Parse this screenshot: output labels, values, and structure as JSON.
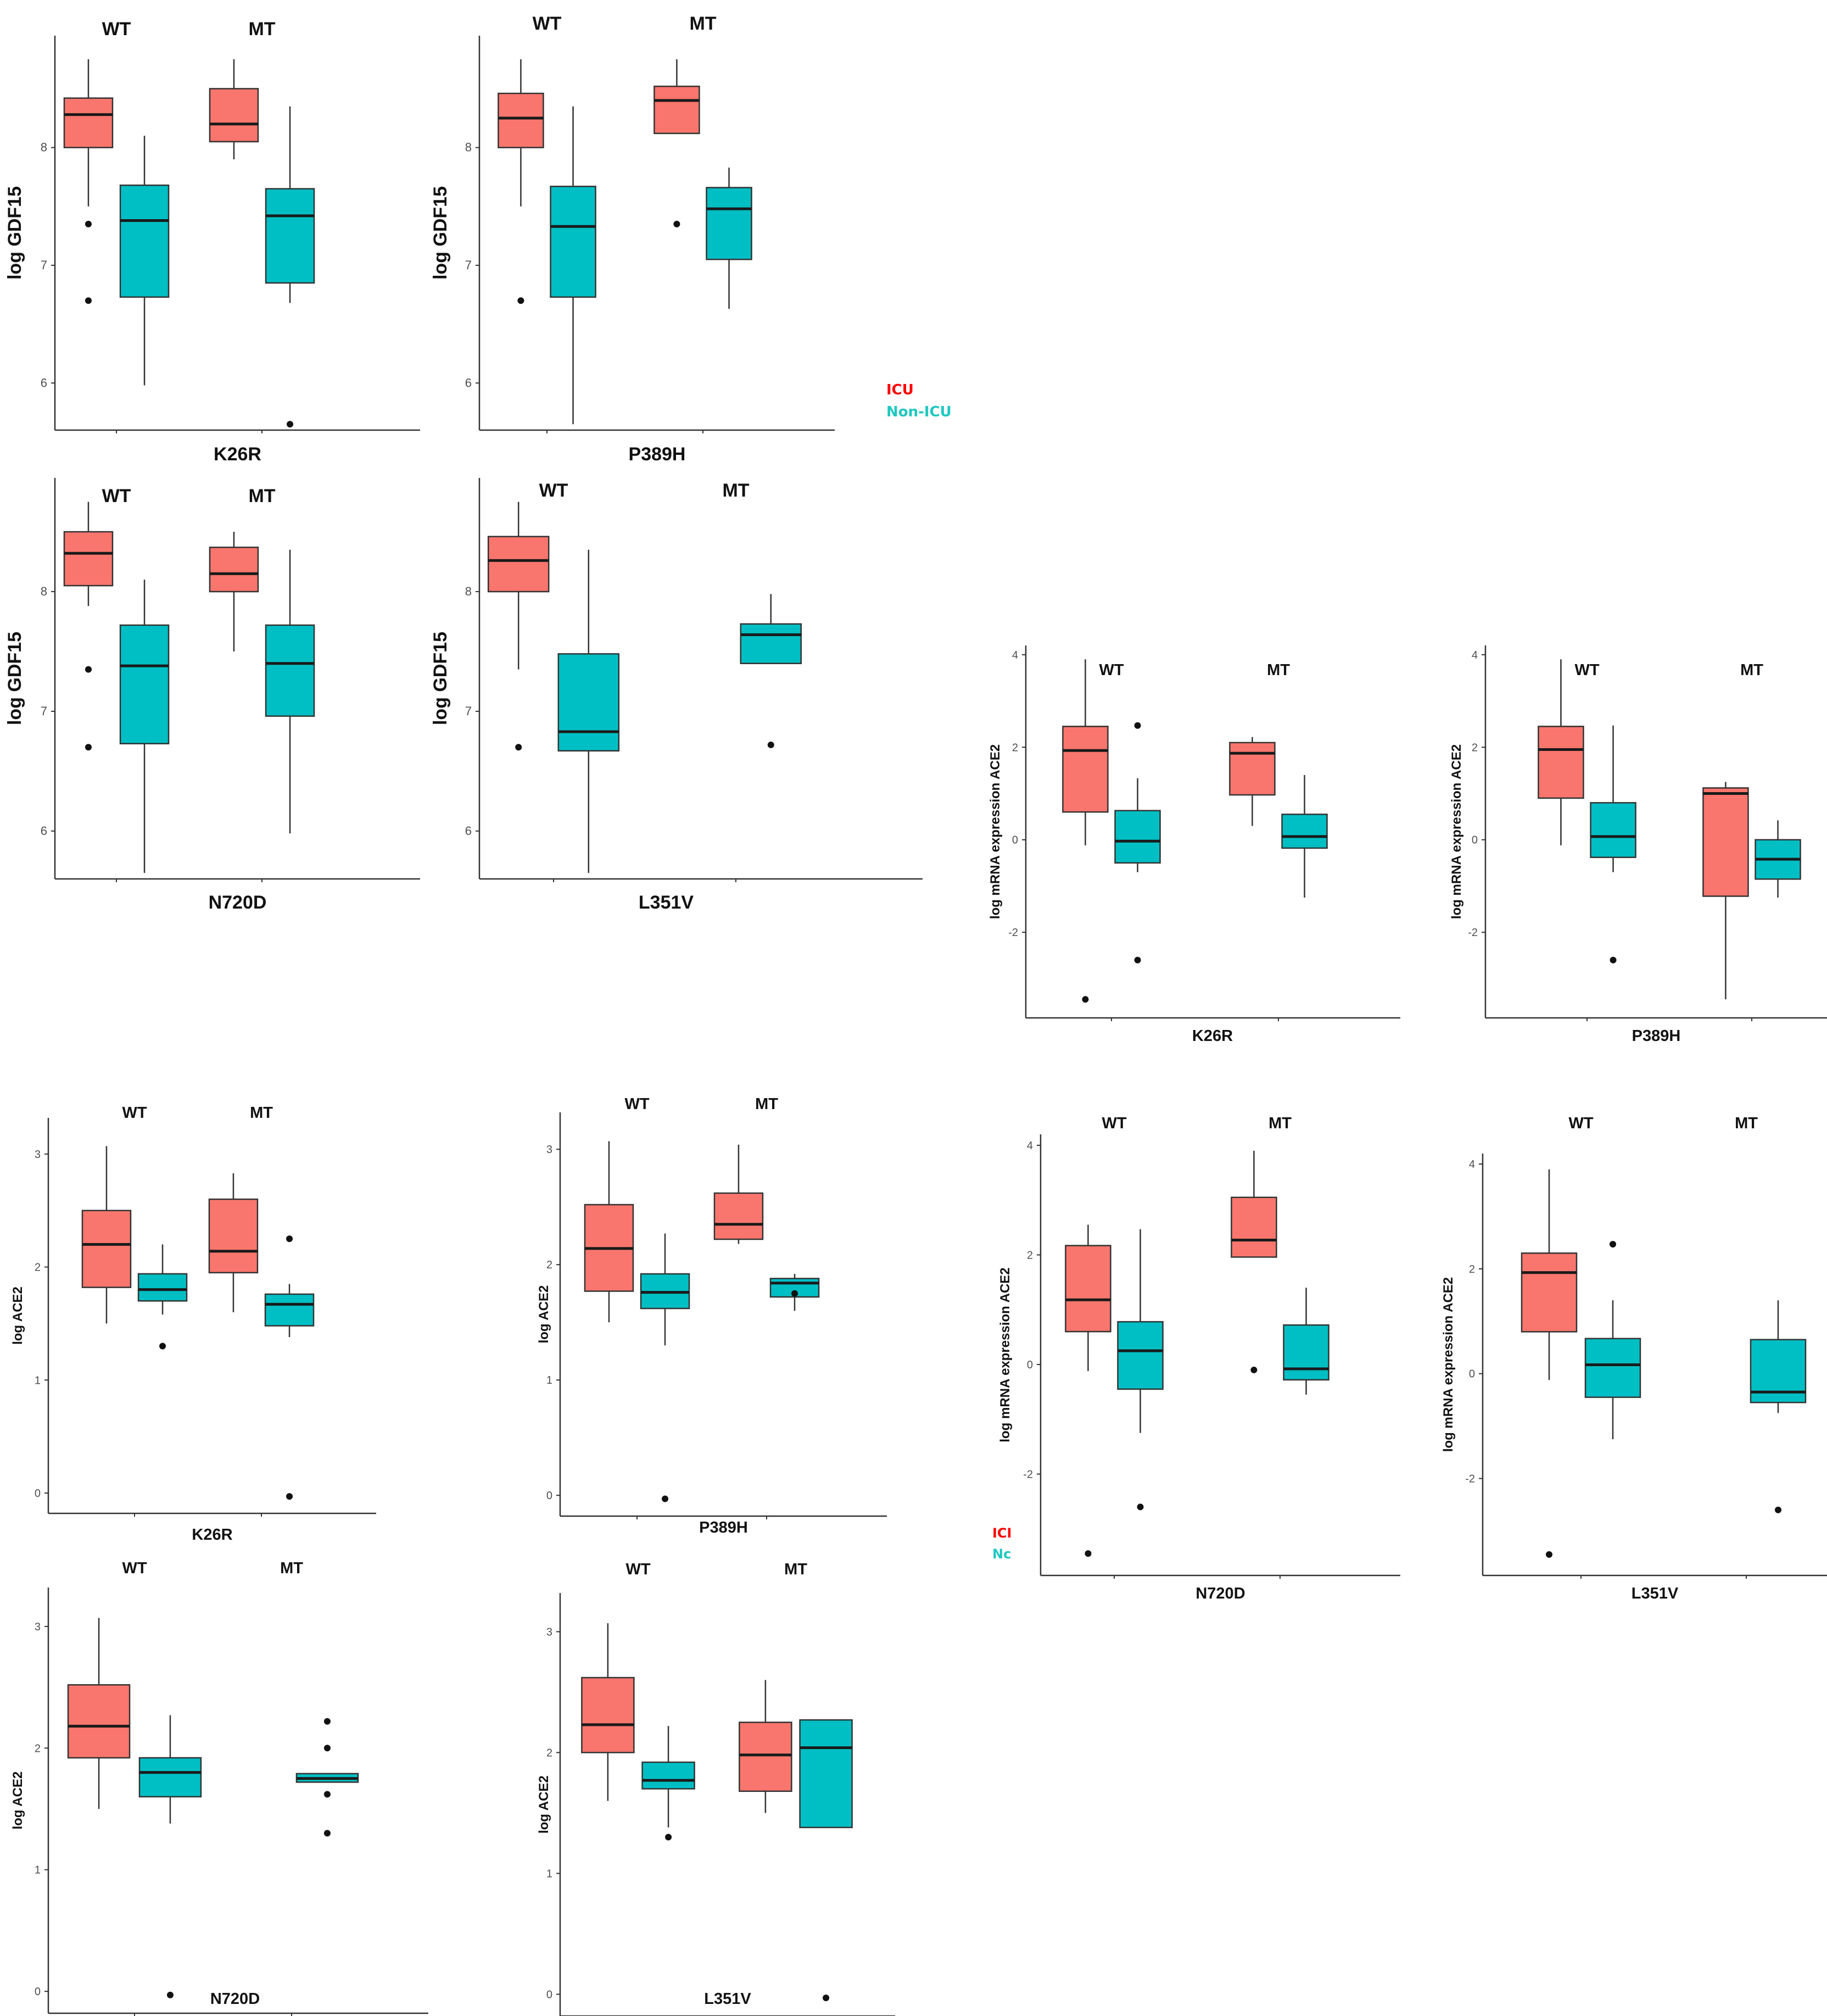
{
  "colors": {
    "icu": "#f8766d",
    "non_icu": "#00bfc4",
    "legend_icu": "#ff0000",
    "legend_non_icu": "#1ec8c0",
    "axis": "#333333"
  },
  "legend_main": {
    "icu": "ICU",
    "non_icu": "Non-ICU"
  },
  "legend_small": {
    "icu": "ICI",
    "non_icu": "Nc"
  },
  "chart_data": [
    {
      "type": "boxplot",
      "xlabel": "K26R",
      "ylabel": "log GDF15",
      "ylim": [
        5.6,
        8.95
      ],
      "yticks": [
        6,
        7,
        8
      ],
      "group_labels": [
        "WT",
        "MT"
      ],
      "series": [
        "ICU",
        "Non-ICU"
      ],
      "boxes": [
        {
          "group": "WT",
          "series": "ICU",
          "whisker_low": 7.5,
          "q1": 8.0,
          "median": 8.28,
          "q3": 8.42,
          "whisker_high": 8.75,
          "outliers": [
            7.35,
            6.7
          ]
        },
        {
          "group": "WT",
          "series": "Non-ICU",
          "whisker_low": 5.98,
          "q1": 6.73,
          "median": 7.38,
          "q3": 7.68,
          "whisker_high": 8.1,
          "outliers": []
        },
        {
          "group": "MT",
          "series": "ICU",
          "whisker_low": 7.9,
          "q1": 8.05,
          "median": 8.2,
          "q3": 8.5,
          "whisker_high": 8.75,
          "outliers": []
        },
        {
          "group": "MT",
          "series": "Non-ICU",
          "whisker_low": 6.68,
          "q1": 6.85,
          "median": 7.42,
          "q3": 7.65,
          "whisker_high": 8.35,
          "outliers": [
            5.65
          ]
        }
      ]
    },
    {
      "type": "boxplot",
      "xlabel": "P389H",
      "ylabel": "log GDF15",
      "ylim": [
        5.6,
        8.95
      ],
      "yticks": [
        6,
        7,
        8
      ],
      "group_labels": [
        "WT",
        "MT"
      ],
      "series": [
        "ICU",
        "Non-ICU"
      ],
      "boxes": [
        {
          "group": "WT",
          "series": "ICU",
          "whisker_low": 7.5,
          "q1": 8.0,
          "median": 8.25,
          "q3": 8.46,
          "whisker_high": 8.75,
          "outliers": [
            6.7
          ]
        },
        {
          "group": "WT",
          "series": "Non-ICU",
          "whisker_low": 5.65,
          "q1": 6.73,
          "median": 7.33,
          "q3": 7.67,
          "whisker_high": 8.35,
          "outliers": []
        },
        {
          "group": "MT",
          "series": "ICU",
          "whisker_low": 8.12,
          "q1": 8.12,
          "median": 8.4,
          "q3": 8.52,
          "whisker_high": 8.75,
          "outliers": [
            7.35
          ]
        },
        {
          "group": "MT",
          "series": "Non-ICU",
          "whisker_low": 6.63,
          "q1": 7.05,
          "median": 7.48,
          "q3": 7.66,
          "whisker_high": 7.83,
          "outliers": []
        }
      ]
    },
    {
      "type": "boxplot",
      "xlabel": "N720D",
      "ylabel": "log GDF15",
      "ylim": [
        5.6,
        8.95
      ],
      "yticks": [
        6,
        7,
        8
      ],
      "group_labels": [
        "WT",
        "MT"
      ],
      "series": [
        "ICU",
        "Non-ICU"
      ],
      "boxes": [
        {
          "group": "WT",
          "series": "ICU",
          "whisker_low": 7.88,
          "q1": 8.05,
          "median": 8.32,
          "q3": 8.5,
          "whisker_high": 8.75,
          "outliers": [
            7.35,
            6.7
          ]
        },
        {
          "group": "WT",
          "series": "Non-ICU",
          "whisker_low": 5.65,
          "q1": 6.73,
          "median": 7.38,
          "q3": 7.72,
          "whisker_high": 8.1,
          "outliers": []
        },
        {
          "group": "MT",
          "series": "ICU",
          "whisker_low": 7.5,
          "q1": 8.0,
          "median": 8.15,
          "q3": 8.37,
          "whisker_high": 8.5,
          "outliers": []
        },
        {
          "group": "MT",
          "series": "Non-ICU",
          "whisker_low": 5.98,
          "q1": 6.96,
          "median": 7.4,
          "q3": 7.72,
          "whisker_high": 8.35,
          "outliers": []
        }
      ]
    },
    {
      "type": "boxplot",
      "xlabel": "L351V",
      "ylabel": "log GDF15",
      "ylim": [
        5.6,
        8.95
      ],
      "yticks": [
        6,
        7,
        8
      ],
      "group_labels": [
        "WT",
        "MT"
      ],
      "series": [
        "ICU",
        "Non-ICU"
      ],
      "boxes": [
        {
          "group": "WT",
          "series": "ICU",
          "whisker_low": 7.35,
          "q1": 8.0,
          "median": 8.26,
          "q3": 8.46,
          "whisker_high": 8.75,
          "outliers": [
            6.7
          ]
        },
        {
          "group": "WT",
          "series": "Non-ICU",
          "whisker_low": 5.65,
          "q1": 6.67,
          "median": 6.83,
          "q3": 7.48,
          "whisker_high": 8.35,
          "outliers": []
        },
        {
          "group": "MT",
          "series": "Non-ICU",
          "whisker_low": 7.4,
          "q1": 7.4,
          "median": 7.64,
          "q3": 7.73,
          "whisker_high": 7.98,
          "outliers": [
            6.72
          ]
        }
      ]
    },
    {
      "type": "boxplot",
      "xlabel": "K26R",
      "ylabel": "log mRNA expression ACE2",
      "ylim": [
        -3.85,
        4.2
      ],
      "yticks": [
        -2,
        0,
        2,
        4
      ],
      "group_labels": [
        "WT",
        "MT"
      ],
      "series": [
        "ICU",
        "Non-ICU"
      ],
      "boxes": [
        {
          "group": "WT",
          "series": "ICU",
          "whisker_low": -0.12,
          "q1": 0.6,
          "median": 1.93,
          "q3": 2.45,
          "whisker_high": 3.9,
          "outliers": [
            -3.45
          ]
        },
        {
          "group": "WT",
          "series": "Non-ICU",
          "whisker_low": -0.7,
          "q1": -0.5,
          "median": -0.03,
          "q3": 0.63,
          "whisker_high": 1.33,
          "outliers": [
            2.47,
            -2.6
          ]
        },
        {
          "group": "MT",
          "series": "ICU",
          "whisker_low": 0.3,
          "q1": 0.97,
          "median": 1.87,
          "q3": 2.1,
          "whisker_high": 2.22,
          "outliers": []
        },
        {
          "group": "MT",
          "series": "Non-ICU",
          "whisker_low": -1.25,
          "q1": -0.18,
          "median": 0.07,
          "q3": 0.55,
          "whisker_high": 1.4,
          "outliers": []
        }
      ]
    },
    {
      "type": "boxplot",
      "xlabel": "P389H",
      "ylabel": "log mRNA expression ACE2",
      "ylim": [
        -3.85,
        4.2
      ],
      "yticks": [
        -2,
        0,
        2,
        4
      ],
      "group_labels": [
        "WT",
        "MT"
      ],
      "series": [
        "ICU",
        "Non-ICU"
      ],
      "boxes": [
        {
          "group": "WT",
          "series": "ICU",
          "whisker_low": -0.12,
          "q1": 0.9,
          "median": 1.95,
          "q3": 2.45,
          "whisker_high": 3.9,
          "outliers": []
        },
        {
          "group": "WT",
          "series": "Non-ICU",
          "whisker_low": -0.7,
          "q1": -0.38,
          "median": 0.07,
          "q3": 0.8,
          "whisker_high": 2.47,
          "outliers": [
            -2.6
          ]
        },
        {
          "group": "MT",
          "series": "ICU",
          "whisker_low": -3.45,
          "q1": -1.22,
          "median": 1.0,
          "q3": 1.12,
          "whisker_high": 1.25,
          "outliers": []
        },
        {
          "group": "MT",
          "series": "Non-ICU",
          "whisker_low": -1.25,
          "q1": -0.85,
          "median": -0.42,
          "q3": 0.0,
          "whisker_high": 0.42,
          "outliers": []
        }
      ]
    },
    {
      "type": "boxplot",
      "xlabel": "K26R",
      "ylabel": "log ACE2",
      "ylim": [
        -0.18,
        3.32
      ],
      "yticks": [
        0,
        1,
        2,
        3
      ],
      "group_labels": [
        "WT",
        "MT"
      ],
      "series": [
        "ICU",
        "Non-ICU"
      ],
      "boxes": [
        {
          "group": "WT",
          "series": "ICU",
          "whisker_low": 1.5,
          "q1": 1.82,
          "median": 2.2,
          "q3": 2.5,
          "whisker_high": 3.07,
          "outliers": []
        },
        {
          "group": "WT",
          "series": "Non-ICU",
          "whisker_low": 1.58,
          "q1": 1.7,
          "median": 1.8,
          "q3": 1.94,
          "whisker_high": 2.2,
          "outliers": [
            1.3
          ]
        },
        {
          "group": "MT",
          "series": "ICU",
          "whisker_low": 1.6,
          "q1": 1.95,
          "median": 2.14,
          "q3": 2.6,
          "whisker_high": 2.83,
          "outliers": []
        },
        {
          "group": "MT",
          "series": "Non-ICU",
          "whisker_low": 1.38,
          "q1": 1.48,
          "median": 1.67,
          "q3": 1.76,
          "whisker_high": 1.85,
          "outliers": [
            2.25,
            -0.03
          ]
        }
      ]
    },
    {
      "type": "boxplot",
      "xlabel": "P389H",
      "ylabel": "log ACE2",
      "ylim": [
        -0.18,
        3.32
      ],
      "yticks": [
        0,
        1,
        2,
        3
      ],
      "group_labels": [
        "WT",
        "MT"
      ],
      "series": [
        "ICU",
        "Non-ICU"
      ],
      "boxes": [
        {
          "group": "WT",
          "series": "ICU",
          "whisker_low": 1.5,
          "q1": 1.77,
          "median": 2.14,
          "q3": 2.52,
          "whisker_high": 3.07,
          "outliers": []
        },
        {
          "group": "WT",
          "series": "Non-ICU",
          "whisker_low": 1.3,
          "q1": 1.62,
          "median": 1.76,
          "q3": 1.92,
          "whisker_high": 2.27,
          "outliers": [
            -0.03
          ]
        },
        {
          "group": "MT",
          "series": "ICU",
          "whisker_low": 2.18,
          "q1": 2.22,
          "median": 2.35,
          "q3": 2.62,
          "whisker_high": 3.04,
          "outliers": []
        },
        {
          "group": "MT",
          "series": "Non-ICU",
          "whisker_low": 1.6,
          "q1": 1.72,
          "median": 1.84,
          "q3": 1.88,
          "whisker_high": 1.92,
          "outliers": [
            1.75
          ]
        }
      ]
    },
    {
      "type": "boxplot",
      "xlabel": "N720D",
      "ylabel": "log mRNA expression ACE2",
      "ylim": [
        -3.85,
        4.2
      ],
      "yticks": [
        -2,
        0,
        2,
        4
      ],
      "group_labels": [
        "WT",
        "MT"
      ],
      "series": [
        "ICU",
        "Non-ICU"
      ],
      "boxes": [
        {
          "group": "WT",
          "series": "ICU",
          "whisker_low": -0.12,
          "q1": 0.6,
          "median": 1.18,
          "q3": 2.17,
          "whisker_high": 2.55,
          "outliers": [
            -3.45
          ]
        },
        {
          "group": "WT",
          "series": "Non-ICU",
          "whisker_low": -1.25,
          "q1": -0.45,
          "median": 0.25,
          "q3": 0.78,
          "whisker_high": 2.47,
          "outliers": [
            -2.6
          ]
        },
        {
          "group": "MT",
          "series": "ICU",
          "whisker_low": 1.96,
          "q1": 1.96,
          "median": 2.27,
          "q3": 3.05,
          "whisker_high": 3.9,
          "outliers": [
            -0.1
          ]
        },
        {
          "group": "MT",
          "series": "Non-ICU",
          "whisker_low": -0.55,
          "q1": -0.28,
          "median": -0.08,
          "q3": 0.72,
          "whisker_high": 1.4,
          "outliers": []
        }
      ]
    },
    {
      "type": "boxplot",
      "xlabel": "L351V",
      "ylabel": "log mRNA expression ACE2",
      "ylim": [
        -3.85,
        4.2
      ],
      "yticks": [
        -2,
        0,
        2,
        4
      ],
      "group_labels": [
        "WT",
        "MT"
      ],
      "series": [
        "ICU",
        "Non-ICU"
      ],
      "boxes": [
        {
          "group": "WT",
          "series": "ICU",
          "whisker_low": -0.12,
          "q1": 0.8,
          "median": 1.93,
          "q3": 2.3,
          "whisker_high": 3.9,
          "outliers": [
            -3.45
          ]
        },
        {
          "group": "WT",
          "series": "Non-ICU",
          "whisker_low": -1.25,
          "q1": -0.45,
          "median": 0.17,
          "q3": 0.67,
          "whisker_high": 1.4,
          "outliers": [
            2.47
          ]
        },
        {
          "group": "MT",
          "series": "Non-ICU",
          "whisker_low": -0.75,
          "q1": -0.55,
          "median": -0.35,
          "q3": 0.65,
          "whisker_high": 1.4,
          "outliers": [
            -2.6
          ]
        }
      ]
    },
    {
      "type": "boxplot",
      "xlabel": "N720D",
      "ylabel": "log ACE2",
      "ylim": [
        -0.18,
        3.32
      ],
      "yticks": [
        0,
        1,
        2,
        3
      ],
      "group_labels": [
        "WT",
        "MT"
      ],
      "series": [
        "ICU",
        "Non-ICU"
      ],
      "boxes": [
        {
          "group": "WT",
          "series": "ICU",
          "whisker_low": 1.5,
          "q1": 1.92,
          "median": 2.18,
          "q3": 2.52,
          "whisker_high": 3.07,
          "outliers": []
        },
        {
          "group": "WT",
          "series": "Non-ICU",
          "whisker_low": 1.38,
          "q1": 1.6,
          "median": 1.8,
          "q3": 1.92,
          "whisker_high": 2.27,
          "outliers": [
            -0.03
          ]
        },
        {
          "group": "MT",
          "series": "Non-ICU",
          "whisker_low": 1.72,
          "q1": 1.72,
          "median": 1.75,
          "q3": 1.79,
          "whisker_high": 1.79,
          "outliers": [
            2.22,
            2.0,
            1.62,
            1.3
          ]
        }
      ]
    },
    {
      "type": "boxplot",
      "xlabel": "L351V",
      "ylabel": "log ACE2",
      "ylim": [
        -0.18,
        3.32
      ],
      "yticks": [
        0,
        1,
        2,
        3
      ],
      "group_labels": [
        "WT",
        "MT"
      ],
      "series": [
        "ICU",
        "Non-ICU"
      ],
      "boxes": [
        {
          "group": "WT",
          "series": "ICU",
          "whisker_low": 1.6,
          "q1": 2.0,
          "median": 2.23,
          "q3": 2.62,
          "whisker_high": 3.07,
          "outliers": []
        },
        {
          "group": "WT",
          "series": "Non-ICU",
          "whisker_low": 1.38,
          "q1": 1.7,
          "median": 1.77,
          "q3": 1.92,
          "whisker_high": 2.22,
          "outliers": [
            1.3
          ]
        },
        {
          "group": "MT",
          "series": "ICU",
          "whisker_low": 1.5,
          "q1": 1.68,
          "median": 1.98,
          "q3": 2.25,
          "whisker_high": 2.6,
          "outliers": []
        },
        {
          "group": "MT",
          "series": "Non-ICU",
          "whisker_low": 1.38,
          "q1": 1.38,
          "median": 2.04,
          "q3": 2.27,
          "whisker_high": 2.27,
          "outliers": [
            -0.03
          ]
        }
      ]
    }
  ]
}
